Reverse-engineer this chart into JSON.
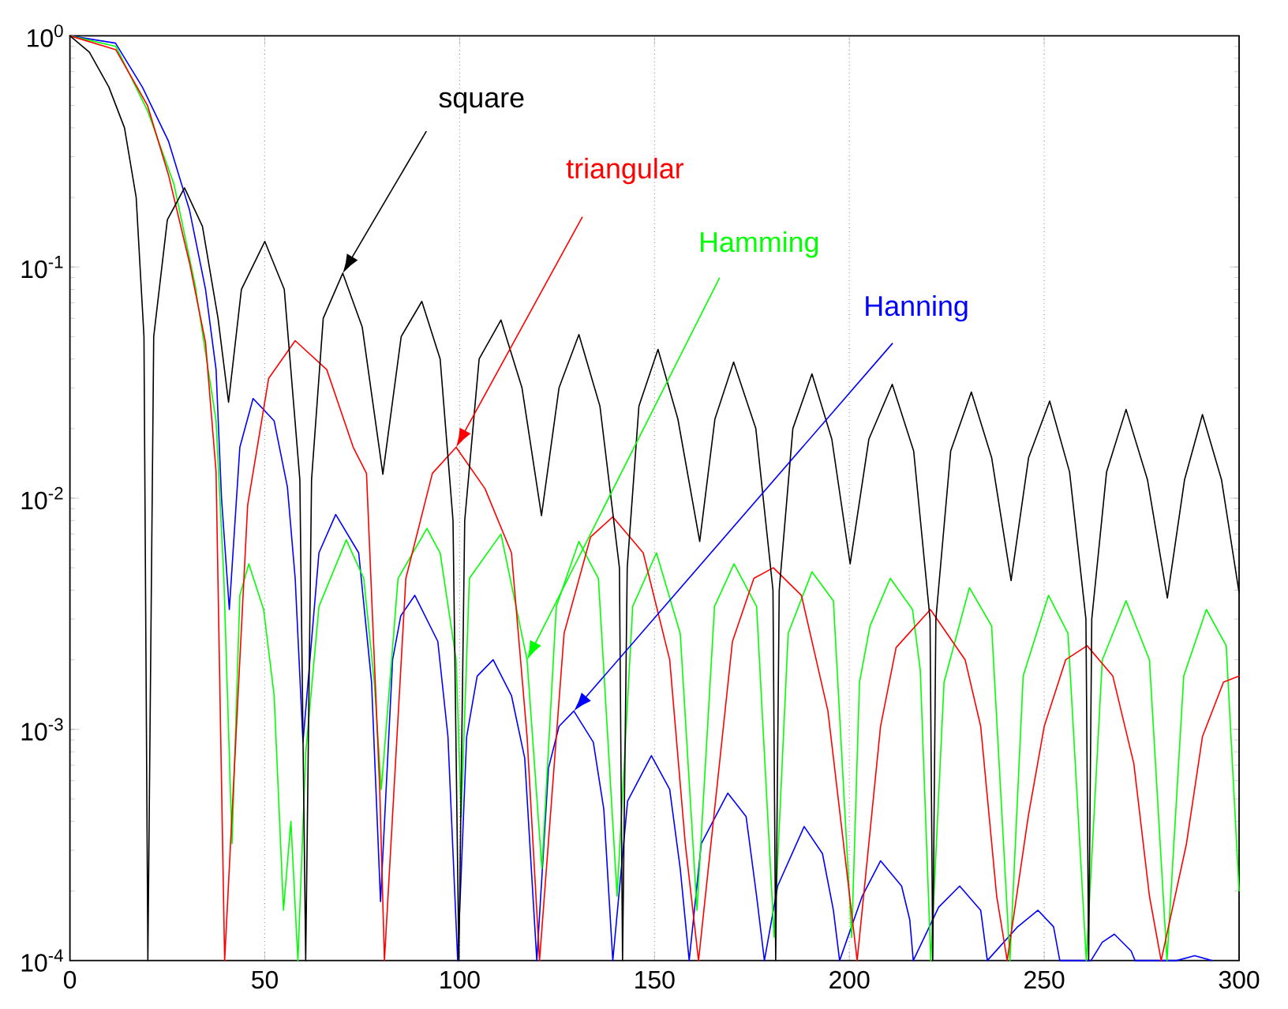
{
  "chart_data": {
    "type": "line",
    "log": "y",
    "grid": "x",
    "marker": "none",
    "line_style": "solid",
    "xlim": [
      0,
      300
    ],
    "xticks": [
      0,
      50,
      100,
      150,
      200,
      250,
      300
    ],
    "ylim": [
      0.0001,
      1
    ],
    "yticks": [
      {
        "value": 0.0001,
        "label": "10$^{-4}$"
      },
      {
        "value": 0.001,
        "label": "10$^{-3}$"
      },
      {
        "value": 0.01,
        "label": "10$^{-2}$"
      },
      {
        "value": 0.1,
        "label": "10$^{-1}$"
      },
      {
        "value": 1,
        "label": "10$^{0}$"
      }
    ],
    "series": [
      {
        "name": "square",
        "color": "#000000",
        "x": [
          0,
          5,
          10,
          14,
          17,
          19,
          20,
          21.5,
          25,
          29.4,
          34,
          38,
          40.7,
          44,
          50,
          55,
          59,
          60.5,
          62,
          65,
          70,
          75,
          80.3,
          85,
          90.3,
          95,
          98.3,
          99.8,
          101.3,
          105,
          110.6,
          116,
          121,
          125.5,
          130.6,
          136,
          141,
          141.8,
          143,
          146,
          150.9,
          156,
          161.6,
          165.5,
          170.3,
          176,
          180.4,
          181.1,
          182,
          185.5,
          190.4,
          195.5,
          200.2,
          205,
          211,
          216.5,
          220.7,
          221.4,
          222.2,
          226,
          231.3,
          236.5,
          241.5,
          246,
          251.4,
          256.5,
          260.7,
          261.4,
          262.2,
          266,
          271,
          276.5,
          281.6,
          286,
          290.6,
          295.5,
          300
        ],
        "values": [
          1,
          0.85,
          0.6,
          0.4,
          0.2,
          0.05,
          0.0001,
          0.05,
          0.16,
          0.22,
          0.15,
          0.06,
          0.026,
          0.08,
          0.129,
          0.08,
          0.012,
          0.0001,
          0.012,
          0.06,
          0.094,
          0.055,
          0.0127,
          0.05,
          0.071,
          0.04,
          0.008,
          0.0001,
          0.008,
          0.04,
          0.059,
          0.03,
          0.0084,
          0.03,
          0.051,
          0.025,
          0.005,
          0.0001,
          0.005,
          0.025,
          0.044,
          0.022,
          0.0065,
          0.022,
          0.0388,
          0.02,
          0.004,
          0.0001,
          0.004,
          0.02,
          0.0345,
          0.018,
          0.0052,
          0.018,
          0.0311,
          0.016,
          0.003,
          0.0001,
          0.003,
          0.016,
          0.0288,
          0.015,
          0.0044,
          0.015,
          0.0263,
          0.013,
          0.003,
          0.0001,
          0.003,
          0.013,
          0.0242,
          0.012,
          0.0037,
          0.012,
          0.023,
          0.012,
          0.0039
        ]
      },
      {
        "name": "triangular",
        "color": "#ff0000",
        "x": [
          0,
          11.8,
          19.9,
          25.3,
          30.7,
          34.8,
          37.5,
          39.7,
          45.6,
          51,
          57.8,
          65.9,
          72.7,
          76.1,
          79.5,
          80.7,
          86.2,
          93,
          99.1,
          106.5,
          113.3,
          117.3,
          120.5,
          126.8,
          133.6,
          139.3,
          147.1,
          153.9,
          157.9,
          161.3,
          170,
          175.5,
          180.5,
          187.7,
          194.5,
          198.5,
          202,
          208,
          212,
          220.8,
          229.7,
          233.7,
          237.8,
          240.5,
          245.9,
          250,
          255.5,
          261,
          267.6,
          273,
          277,
          280,
          286.5,
          290.6,
          296,
          300
        ],
        "values": [
          1,
          0.87,
          0.5,
          0.25,
          0.104,
          0.047,
          0.013,
          0.0001,
          0.0093,
          0.033,
          0.048,
          0.036,
          0.0166,
          0.0128,
          0.00055,
          0.0001,
          0.0045,
          0.0128,
          0.0166,
          0.011,
          0.0058,
          0.00093,
          0.0001,
          0.0026,
          0.0068,
          0.0083,
          0.0058,
          0.002,
          0.00032,
          0.0001,
          0.0024,
          0.0045,
          0.005,
          0.0038,
          0.0012,
          0.00032,
          0.0001,
          0.00103,
          0.00226,
          0.0033,
          0.002,
          0.00103,
          0.00019,
          0.0001,
          0.00042,
          0.00103,
          0.002,
          0.0023,
          0.0017,
          0.00071,
          0.00019,
          0.0001,
          0.00032,
          0.00093,
          0.0016,
          0.0017
        ]
      },
      {
        "name": "Hamming",
        "color": "#00ff00",
        "x": [
          0,
          11.8,
          19.9,
          26.7,
          32.1,
          37.5,
          39.5,
          41.6,
          43.6,
          45.9,
          49.7,
          52.4,
          54.8,
          56.7,
          58.5,
          60.5,
          63.9,
          70.9,
          75.4,
          78.1,
          79.9,
          84.2,
          91.6,
          95,
          99.1,
          100.4,
          102.5,
          110.6,
          117.3,
          121.1,
          124.8,
          130.6,
          135.6,
          140.4,
          144.4,
          150.5,
          156.6,
          160.9,
          165.4,
          170.4,
          176.2,
          180.7,
          184.3,
          190.4,
          195.9,
          200.6,
          202.6,
          205.3,
          210.5,
          216.2,
          218.2,
          220.9,
          224.3,
          230.8,
          236.5,
          241.2,
          244.6,
          251.1,
          256.1,
          260.8,
          264.9,
          271,
          277,
          281.5,
          285.8,
          291.6,
          296.7,
          300
        ],
        "values": [
          1,
          0.9,
          0.475,
          0.228,
          0.084,
          0.0216,
          0.0045,
          0.00032,
          0.0038,
          0.0052,
          0.0033,
          0.0014,
          0.000165,
          0.0004,
          0.0001,
          0.00079,
          0.0034,
          0.0066,
          0.0045,
          0.0016,
          0.00055,
          0.0045,
          0.0074,
          0.0058,
          0.002,
          0.00042,
          0.0045,
          0.007,
          0.002,
          0.00025,
          0.0034,
          0.0065,
          0.0045,
          0.00019,
          0.0034,
          0.0058,
          0.0026,
          0.000165,
          0.0034,
          0.0052,
          0.0034,
          0.000126,
          0.0026,
          0.0048,
          0.0036,
          0.000126,
          0.0016,
          0.0028,
          0.0045,
          0.0033,
          0.0018,
          0.0001,
          0.0016,
          0.0041,
          0.0028,
          0.0001,
          0.0017,
          0.0038,
          0.0026,
          0.0001,
          0.002,
          0.0036,
          0.002,
          0.0001,
          0.0017,
          0.0033,
          0.0023,
          0.0002
        ]
      },
      {
        "name": "Hanning",
        "color": "#0000ff",
        "x": [
          0,
          11.7,
          18.6,
          25.3,
          30.7,
          34.8,
          37.5,
          38.9,
          40.9,
          43.6,
          47,
          52.4,
          55.8,
          57.8,
          59.8,
          63.9,
          68.2,
          74.1,
          77.4,
          79.7,
          82.8,
          84.9,
          88.5,
          94.4,
          97,
          99.5,
          101.8,
          104.5,
          108.6,
          113.3,
          116.7,
          119.8,
          122.8,
          125.5,
          129.3,
          134.3,
          137,
          139.3,
          143.1,
          149.2,
          153.9,
          156.6,
          158.9,
          162,
          168.8,
          173.5,
          176.2,
          178.2,
          181.6,
          188.4,
          193.1,
          195.9,
          197.5,
          203.3,
          208,
          213.4,
          215.5,
          216.4,
          222.9,
          228.3,
          233.7,
          235.4,
          243.2,
          248.4,
          252.4,
          254,
          262,
          264.9,
          268,
          272.3,
          273.3,
          284,
          288.6,
          293
        ],
        "values": [
          1,
          0.93,
          0.6,
          0.35,
          0.176,
          0.08,
          0.036,
          0.01,
          0.0033,
          0.0166,
          0.027,
          0.0216,
          0.0112,
          0.0045,
          0.00088,
          0.0058,
          0.0085,
          0.0058,
          0.0016,
          0.00018,
          0.002,
          0.0031,
          0.0038,
          0.0024,
          0.00093,
          0.0001,
          0.00093,
          0.0017,
          0.002,
          0.0014,
          0.00075,
          0.0001,
          0.00068,
          0.00103,
          0.0012,
          0.00088,
          0.00045,
          0.0001,
          0.00049,
          0.00077,
          0.00055,
          0.00025,
          0.0001,
          0.00032,
          0.00053,
          0.00042,
          0.00019,
          0.0001,
          0.00021,
          0.00038,
          0.00029,
          0.000165,
          0.0001,
          0.00019,
          0.00027,
          0.00021,
          0.00015,
          0.0001,
          0.00017,
          0.00021,
          0.000165,
          0.0001,
          0.00014,
          0.000165,
          0.00014,
          0.0001,
          0.0001,
          0.00012,
          0.00013,
          0.00011,
          0.0001,
          0.0001,
          0.000105,
          0.0001
        ]
      }
    ]
  }
}
